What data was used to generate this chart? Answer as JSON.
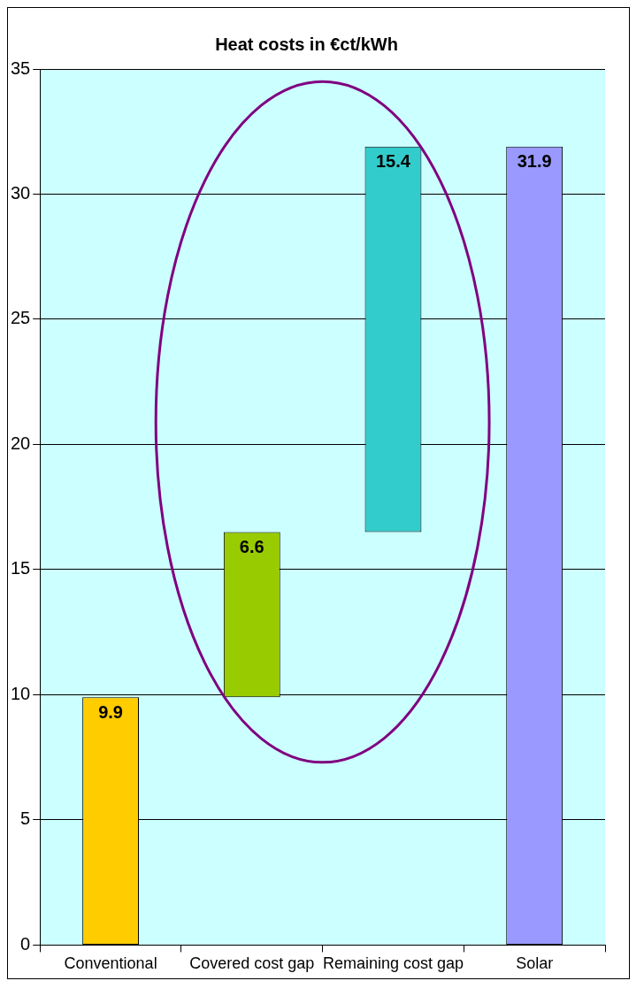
{
  "chart_data": {
    "type": "bar",
    "title": "Heat costs in €ct/kWh",
    "categories": [
      "Conventional",
      "Covered cost gap",
      "Remaining cost gap",
      "Solar"
    ],
    "values": [
      9.9,
      6.6,
      15.4,
      31.9
    ],
    "base": [
      0,
      9.9,
      16.5,
      0
    ],
    "colors": [
      "#ffcc00",
      "#99cc00",
      "#33cccc",
      "#9999ff"
    ],
    "ylim": [
      0,
      35
    ],
    "yticks": [
      0,
      5,
      10,
      15,
      20,
      25,
      30,
      35
    ],
    "grid": "y",
    "legend": false,
    "data_labels": true
  }
}
